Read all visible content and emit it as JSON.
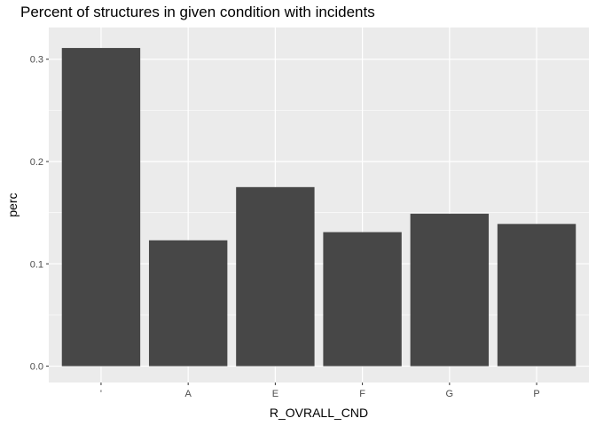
{
  "chart_data": {
    "type": "bar",
    "title": "Percent of structures in given condition with incidents",
    "xlabel": "R_OVRALL_CND",
    "ylabel": "perc",
    "categories": [
      "'",
      "A",
      "E",
      "F",
      "G",
      "P"
    ],
    "values": [
      0.311,
      0.123,
      0.175,
      0.131,
      0.149,
      0.139
    ],
    "ylim": [
      -0.016,
      0.331
    ],
    "yticks": [
      0.0,
      0.1,
      0.2,
      0.3
    ],
    "ytick_labels": [
      "0.0",
      "0.1",
      "0.2",
      "0.3"
    ],
    "grid": true,
    "legend": "none",
    "colors": {
      "bar": "#474747",
      "panel": "#ebebeb",
      "grid": "#ffffff",
      "tick_text": "#4d4d4d",
      "tick_mark": "#333333"
    }
  }
}
